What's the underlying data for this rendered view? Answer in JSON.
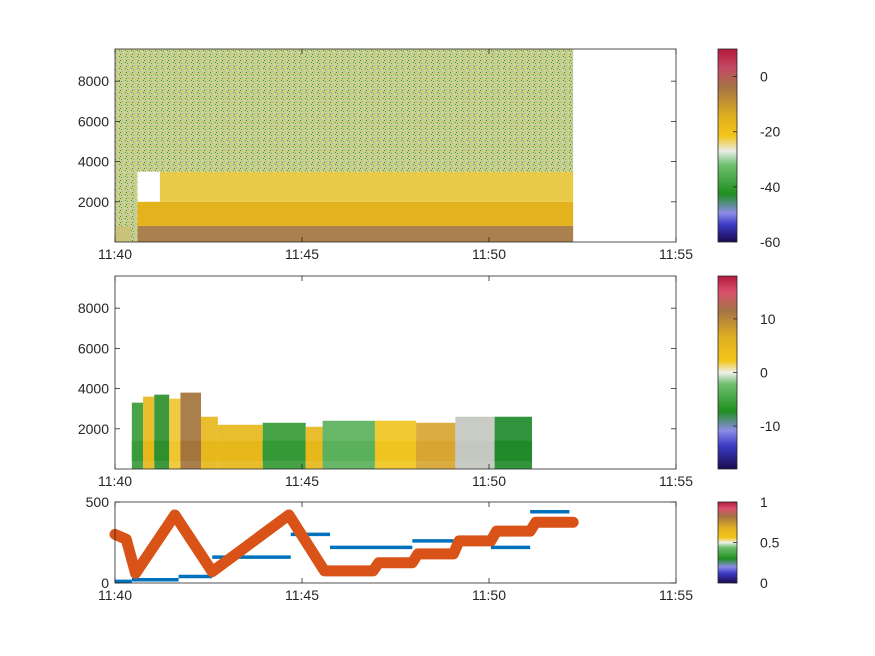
{
  "chart_data": [
    {
      "panel": "top",
      "type": "heatmap",
      "title": "",
      "xlabel": "",
      "ylabel": "",
      "x_ticks": [
        "11:40",
        "11:45",
        "11:50",
        "11:55"
      ],
      "x_range_minutes": [
        0,
        15
      ],
      "y_ticks": [
        2000,
        4000,
        6000,
        8000
      ],
      "y_range": [
        0,
        9600
      ],
      "data_end_minute": 12.25,
      "colorbar": {
        "ticks": [
          0,
          -20,
          -40,
          -60
        ],
        "range": [
          -60,
          10
        ]
      },
      "notes_color_bands": [
        {
          "y_max": 800,
          "color": "#a9804e"
        },
        {
          "y_max": 2000,
          "color": "#e3b21c"
        },
        {
          "y_max": 3500,
          "color": "#e8c948"
        },
        {
          "y_max": 9600,
          "color": "#b8c97a"
        }
      ]
    },
    {
      "panel": "middle",
      "type": "heatmap",
      "title": "",
      "xlabel": "",
      "ylabel": "",
      "x_ticks": [
        "11:40",
        "11:45",
        "11:50",
        "11:55"
      ],
      "x_range_minutes": [
        0,
        15
      ],
      "y_ticks": [
        2000,
        4000,
        6000,
        8000
      ],
      "y_range": [
        0,
        9600
      ],
      "colorbar": {
        "ticks": [
          10,
          0,
          -10
        ],
        "range": [
          -18,
          18
        ]
      },
      "blocks": [
        {
          "x0": 0.45,
          "x1": 0.75,
          "color": "#3a9b3a",
          "top": 3300
        },
        {
          "x0": 0.75,
          "x1": 1.05,
          "color": "#e6b81c",
          "top": 3600
        },
        {
          "x0": 1.05,
          "x1": 1.45,
          "color": "#2e8f2e",
          "top": 3700
        },
        {
          "x0": 1.45,
          "x1": 1.75,
          "color": "#efc530",
          "top": 3500
        },
        {
          "x0": 1.75,
          "x1": 2.3,
          "color": "#a3743c",
          "top": 3800
        },
        {
          "x0": 2.3,
          "x1": 2.75,
          "color": "#e6b81c",
          "top": 2600
        },
        {
          "x0": 2.75,
          "x1": 3.95,
          "color": "#e6b81c",
          "top": 2200
        },
        {
          "x0": 3.95,
          "x1": 5.1,
          "color": "#359a35",
          "top": 2300
        },
        {
          "x0": 5.1,
          "x1": 5.55,
          "color": "#e6b81c",
          "top": 2100
        },
        {
          "x0": 5.55,
          "x1": 6.95,
          "color": "#5bb05b",
          "top": 2400
        },
        {
          "x0": 6.95,
          "x1": 8.05,
          "color": "#f0c420",
          "top": 2400
        },
        {
          "x0": 8.05,
          "x1": 9.1,
          "color": "#d8a630",
          "top": 2300
        },
        {
          "x0": 9.1,
          "x1": 10.15,
          "color": "#c4c8c0",
          "top": 2600
        },
        {
          "x0": 10.15,
          "x1": 11.15,
          "color": "#1f8a2a",
          "top": 2600
        }
      ]
    },
    {
      "panel": "bottom",
      "type": "line",
      "title": "",
      "xlabel": "",
      "ylabel": "",
      "x_ticks": [
        "11:40",
        "11:45",
        "11:50",
        "11:55"
      ],
      "x_range_minutes": [
        0,
        15
      ],
      "y_ticks": [
        0,
        500
      ],
      "y_range": [
        0,
        500
      ],
      "colorbar": {
        "ticks": [
          1,
          0.5,
          0
        ],
        "range": [
          0,
          1
        ]
      },
      "series": [
        {
          "color": "#0072bd",
          "segments": [
            [
              0.0,
              0.45,
              10
            ],
            [
              0.45,
              1.7,
              20
            ],
            [
              1.7,
              2.6,
              40
            ],
            [
              2.6,
              4.7,
              160
            ],
            [
              4.7,
              5.75,
              300
            ],
            [
              5.75,
              7.95,
              220
            ],
            [
              7.95,
              9.05,
              260
            ],
            [
              9.05,
              10.05,
              240
            ],
            [
              10.05,
              11.1,
              220
            ],
            [
              11.1,
              12.15,
              440
            ]
          ]
        },
        {
          "color": "#d95319",
          "x": [
            0.0,
            0.3,
            0.55,
            1.6,
            2.6,
            4.65,
            5.6,
            5.8,
            6.9,
            7.05,
            7.95,
            8.1,
            9.05,
            9.2,
            10.05,
            10.2,
            11.1,
            11.25,
            12.25
          ],
          "y": [
            300,
            270,
            60,
            420,
            70,
            420,
            75,
            75,
            75,
            125,
            125,
            180,
            180,
            260,
            260,
            320,
            320,
            375,
            375
          ]
        }
      ]
    }
  ]
}
